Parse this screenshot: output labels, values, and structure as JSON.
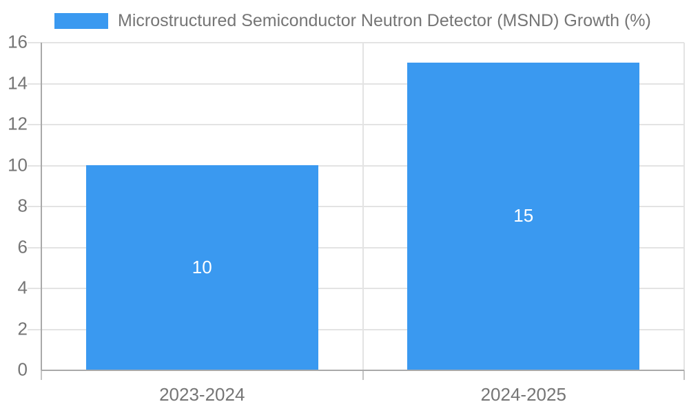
{
  "chart_data": {
    "type": "bar",
    "title": "Microstructured Semiconductor Neutron Detector (MSND) Growth (%)",
    "categories": [
      "2023-2024",
      "2024-2025"
    ],
    "series": [
      {
        "name": "Microstructured Semiconductor Neutron Detector (MSND) Growth (%)",
        "values": [
          10,
          15
        ]
      }
    ],
    "data_labels": [
      "10",
      "15"
    ],
    "xlabel": "",
    "ylabel": "",
    "ylim": [
      0,
      16
    ],
    "yticks": [
      0,
      2,
      4,
      6,
      8,
      10,
      12,
      14,
      16
    ],
    "grid": true,
    "legend_position": "top-left",
    "colors": {
      "bar": "#3a99f0",
      "grid_line": "#e3e3e3",
      "axis_line": "#a9a9a9",
      "tick_extension_line": "#c4c4c4",
      "tick_label": "#757575",
      "legend_label": "#757575",
      "data_label": "#ffffff",
      "background": "#ffffff"
    }
  }
}
